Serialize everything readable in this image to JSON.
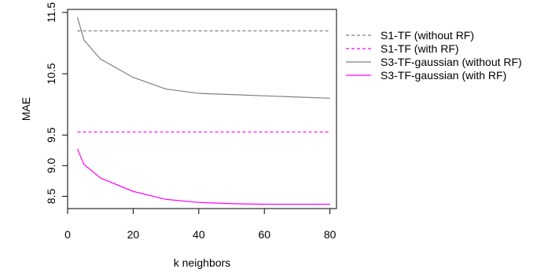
{
  "chart_data": {
    "type": "line",
    "xlabel": "k neighbors",
    "ylabel": "MAE",
    "xlim": [
      0,
      82
    ],
    "ylim": [
      8.3,
      11.55
    ],
    "x_ticks": [
      0,
      20,
      40,
      60,
      80
    ],
    "x_tick_labels": [
      "0",
      "20",
      "40",
      "60",
      "80"
    ],
    "y_ticks": [
      8.5,
      9.0,
      9.5,
      10.5,
      11.5
    ],
    "y_tick_labels": [
      "8.5",
      "9.0",
      "9.5",
      "10.5",
      "11.5"
    ],
    "grid": false,
    "legend_position": "right",
    "series": [
      {
        "name": "S1-TF (without RF)",
        "color": "#808080",
        "dash": "dashed",
        "x": [
          3,
          80
        ],
        "y": [
          11.2,
          11.2
        ]
      },
      {
        "name": "S1-TF (with RF)",
        "color": "#ff00ff",
        "dash": "dashed",
        "x": [
          3,
          80
        ],
        "y": [
          9.55,
          9.55
        ]
      },
      {
        "name": "S3-TF-gaussian (without RF)",
        "color": "#808080",
        "dash": "solid",
        "x": [
          3,
          5,
          10,
          20,
          30,
          40,
          50,
          60,
          70,
          80
        ],
        "y": [
          11.42,
          11.05,
          10.74,
          10.44,
          10.25,
          10.18,
          10.16,
          10.14,
          10.12,
          10.1
        ]
      },
      {
        "name": "S3-TF-gaussian (with RF)",
        "color": "#ff00ff",
        "dash": "solid",
        "x": [
          3,
          5,
          10,
          20,
          30,
          40,
          50,
          60,
          70,
          80
        ],
        "y": [
          9.27,
          9.02,
          8.8,
          8.58,
          8.45,
          8.4,
          8.38,
          8.37,
          8.37,
          8.37
        ]
      }
    ]
  }
}
